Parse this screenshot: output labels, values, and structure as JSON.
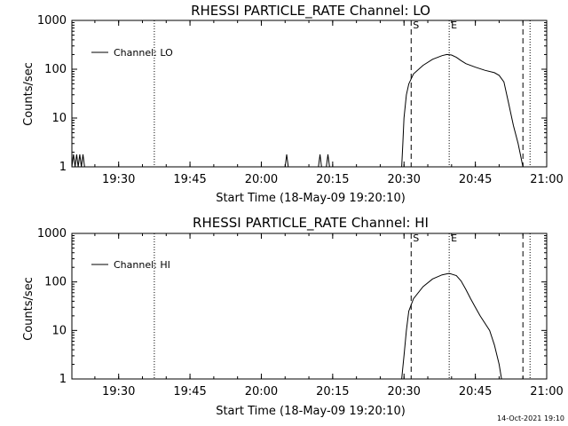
{
  "chart_data": [
    {
      "type": "line",
      "title": "RHESSI PARTICLE_RATE Channel: LO",
      "xlabel": "Start Time (18-May-09 19:20:10)",
      "ylabel": "Counts/sec",
      "yscale": "log",
      "ylim": [
        1,
        1000
      ],
      "xlim": [
        "19:20:10",
        "21:00"
      ],
      "x_tick_labels": [
        "19:30",
        "19:45",
        "20:00",
        "20:15",
        "20:30",
        "20:45",
        "21:00"
      ],
      "y_tick_labels": [
        "1",
        "10",
        "100",
        "1000"
      ],
      "legend": {
        "label": "Channel: LO",
        "position": "top-left"
      },
      "markers": [
        {
          "time": "19:37:30",
          "style": "dotted",
          "label": ""
        },
        {
          "time": "20:31:30",
          "style": "dashed",
          "label": "S"
        },
        {
          "time": "20:39:30",
          "style": "dotted",
          "label": "E"
        },
        {
          "time": "20:55:00",
          "style": "dashed",
          "label": ""
        },
        {
          "time": "20:56:30",
          "style": "dotted",
          "label": ""
        }
      ],
      "series": [
        {
          "name": "Channel: LO",
          "points": [
            [
              "19:20:10",
              1
            ],
            [
              "19:20:30",
              1.8
            ],
            [
              "19:20:50",
              1
            ],
            [
              "19:21:10",
              1.8
            ],
            [
              "19:21:30",
              1
            ],
            [
              "19:21:50",
              1.8
            ],
            [
              "19:22:10",
              1
            ],
            [
              "19:22:30",
              1.8
            ],
            [
              "19:22:50",
              1
            ],
            [
              "20:05:00",
              1
            ],
            [
              "20:05:20",
              1.8
            ],
            [
              "20:05:40",
              1
            ],
            [
              "20:12:00",
              1
            ],
            [
              "20:12:20",
              1.8
            ],
            [
              "20:12:40",
              1
            ],
            [
              "20:13:40",
              1
            ],
            [
              "20:14:00",
              1.8
            ],
            [
              "20:14:20",
              1
            ],
            [
              "20:29:30",
              1
            ],
            [
              "20:29:45",
              3
            ],
            [
              "20:30:00",
              10
            ],
            [
              "20:30:30",
              30
            ],
            [
              "20:31:00",
              50
            ],
            [
              "20:32:00",
              80
            ],
            [
              "20:34:00",
              120
            ],
            [
              "20:36:00",
              160
            ],
            [
              "20:38:00",
              190
            ],
            [
              "20:39:00",
              200
            ],
            [
              "20:40:00",
              195
            ],
            [
              "20:41:00",
              175
            ],
            [
              "20:42:00",
              150
            ],
            [
              "20:43:00",
              130
            ],
            [
              "20:45:00",
              110
            ],
            [
              "20:47:00",
              95
            ],
            [
              "20:49:00",
              85
            ],
            [
              "20:50:00",
              75
            ],
            [
              "20:51:00",
              55
            ],
            [
              "20:52:00",
              20
            ],
            [
              "20:53:00",
              7
            ],
            [
              "20:54:00",
              3
            ],
            [
              "20:55:00",
              1
            ]
          ]
        }
      ]
    },
    {
      "type": "line",
      "title": "RHESSI PARTICLE_RATE Channel: HI",
      "xlabel": "Start Time (18-May-09 19:20:10)",
      "ylabel": "Counts/sec",
      "yscale": "log",
      "ylim": [
        1,
        1000
      ],
      "xlim": [
        "19:20:10",
        "21:00"
      ],
      "x_tick_labels": [
        "19:30",
        "19:45",
        "20:00",
        "20:15",
        "20:30",
        "20:45",
        "21:00"
      ],
      "y_tick_labels": [
        "1",
        "10",
        "100",
        "1000"
      ],
      "legend": {
        "label": "Channel: HI",
        "position": "top-left"
      },
      "markers": [
        {
          "time": "19:37:30",
          "style": "dotted",
          "label": ""
        },
        {
          "time": "20:31:30",
          "style": "dashed",
          "label": "S"
        },
        {
          "time": "20:39:30",
          "style": "dotted",
          "label": "E"
        },
        {
          "time": "20:55:00",
          "style": "dashed",
          "label": ""
        },
        {
          "time": "20:56:30",
          "style": "dotted",
          "label": ""
        }
      ],
      "series": [
        {
          "name": "Channel: HI",
          "points": [
            [
              "20:29:30",
              1
            ],
            [
              "20:30:00",
              3
            ],
            [
              "20:30:30",
              10
            ],
            [
              "20:31:00",
              25
            ],
            [
              "20:32:00",
              45
            ],
            [
              "20:34:00",
              80
            ],
            [
              "20:36:00",
              115
            ],
            [
              "20:38:00",
              140
            ],
            [
              "20:39:30",
              150
            ],
            [
              "20:41:00",
              135
            ],
            [
              "20:42:00",
              105
            ],
            [
              "20:43:00",
              70
            ],
            [
              "20:44:00",
              45
            ],
            [
              "20:45:00",
              30
            ],
            [
              "20:46:00",
              20
            ],
            [
              "20:48:00",
              10
            ],
            [
              "20:49:00",
              5
            ],
            [
              "20:50:00",
              2
            ],
            [
              "20:50:30",
              1
            ]
          ]
        }
      ]
    }
  ],
  "timestamp": "14-Oct-2021 19:10"
}
